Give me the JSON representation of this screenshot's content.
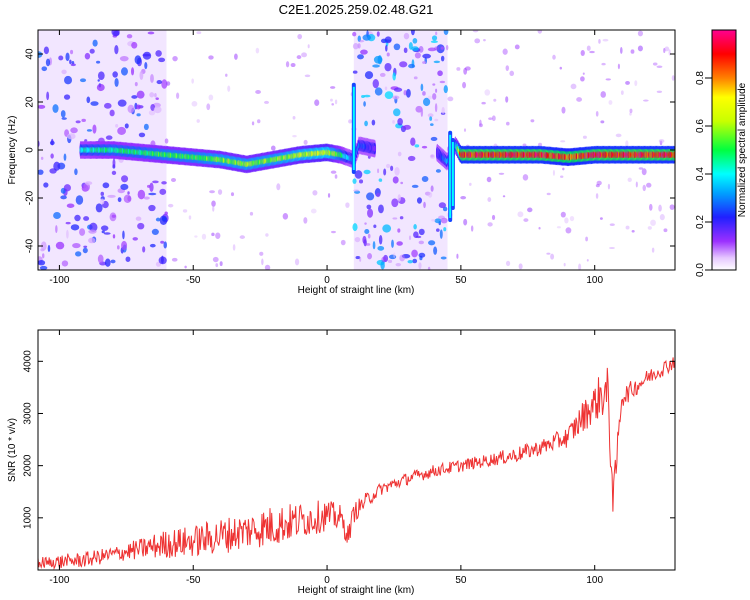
{
  "title": "C2E1.2025.259.02.48.G21",
  "chart_data": [
    {
      "type": "heatmap",
      "name": "spectrogram",
      "xlabel": "Height of straight line (km)",
      "ylabel": "Frequency (Hz)",
      "xlim": [
        -108,
        130
      ],
      "ylim": [
        -50,
        50
      ],
      "xticks": [
        -100,
        -50,
        0,
        50,
        100
      ],
      "yticks": [
        -40,
        -20,
        0,
        20,
        40
      ],
      "colorbar": {
        "label": "Normalized spectral amplitude",
        "range": [
          0.0,
          1.0
        ],
        "ticks": [
          0.0,
          0.2,
          0.4,
          0.6,
          0.8
        ]
      },
      "ridge": {
        "x": [
          -90,
          -80,
          -70,
          -60,
          -50,
          -40,
          -30,
          -20,
          -10,
          0,
          5,
          10,
          12,
          20,
          30,
          40,
          45,
          48,
          50,
          60,
          70,
          80,
          90,
          100,
          110,
          120,
          130
        ],
        "freq": [
          0,
          0,
          -1,
          -2,
          -3,
          -4,
          -6,
          -4,
          -2,
          -1,
          -2,
          -4,
          2,
          0,
          0,
          0,
          -5,
          2,
          -2,
          -2,
          -2,
          -2,
          -3,
          -2,
          -2,
          -2,
          -2
        ],
        "amplitude": [
          0.45,
          0.5,
          0.5,
          0.55,
          0.55,
          0.6,
          0.6,
          0.6,
          0.65,
          0.7,
          0.5,
          0.3,
          0.3,
          0.1,
          0.1,
          0.1,
          0.35,
          0.4,
          0.95,
          0.95,
          0.95,
          0.95,
          0.9,
          0.95,
          0.95,
          0.95,
          0.95
        ]
      },
      "noise_regions": [
        {
          "x_from": -108,
          "x_to": -60,
          "level": 0.15
        },
        {
          "x_from": 10,
          "x_to": 45,
          "level": 0.2
        }
      ]
    },
    {
      "type": "line",
      "name": "snr",
      "xlabel": "Height of straight line (km)",
      "ylabel": "SNR (10 * v/v)",
      "xlim": [
        -108,
        130
      ],
      "ylim": [
        0,
        4600
      ],
      "xticks": [
        -100,
        -50,
        0,
        50,
        100
      ],
      "yticks": [
        1000,
        2000,
        3000,
        4000
      ],
      "color": "#ee3333",
      "series": [
        {
          "name": "SNR",
          "x": [
            -108,
            -100,
            -90,
            -80,
            -70,
            -60,
            -50,
            -40,
            -30,
            -20,
            -10,
            0,
            5,
            8,
            10,
            15,
            20,
            30,
            40,
            50,
            60,
            70,
            80,
            90,
            95,
            100,
            103,
            105,
            107,
            110,
            120,
            130
          ],
          "y": [
            100,
            150,
            200,
            300,
            400,
            500,
            550,
            650,
            750,
            850,
            950,
            1050,
            1000,
            650,
            1100,
            1350,
            1550,
            1750,
            1900,
            2000,
            2100,
            2200,
            2350,
            2550,
            2900,
            3200,
            3400,
            3300,
            1300,
            3300,
            3700,
            4000
          ],
          "noise_amp": [
            150,
            150,
            150,
            150,
            200,
            280,
            300,
            350,
            350,
            400,
            350,
            300,
            250,
            200,
            200,
            150,
            120,
            120,
            120,
            120,
            120,
            150,
            150,
            200,
            300,
            350,
            500,
            600,
            400,
            200,
            150,
            150
          ]
        }
      ]
    }
  ]
}
